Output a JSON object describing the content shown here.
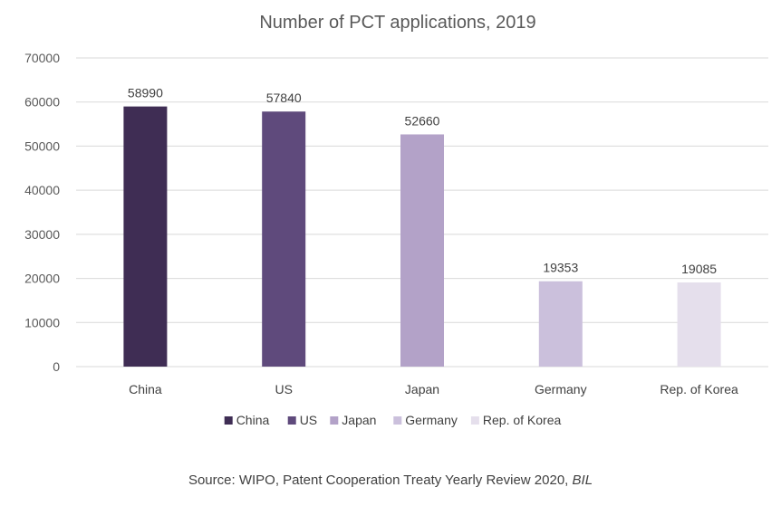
{
  "chart_data": {
    "type": "bar",
    "title": "Number of PCT applications, 2019",
    "categories": [
      "China",
      "US",
      "Japan",
      "Germany",
      "Rep. of Korea"
    ],
    "values": [
      58990,
      57840,
      52660,
      19353,
      19085
    ],
    "data_labels": [
      "58990",
      "57840",
      "52660",
      "19353",
      "19085"
    ],
    "colors": [
      "#3f2d54",
      "#5f4a7c",
      "#b3a2c8",
      "#cbc0dc",
      "#e5dfec"
    ],
    "legend": [
      "China",
      "US",
      "Japan",
      "Germany",
      "Rep. of Korea"
    ],
    "legend_position": "bottom",
    "ylim": [
      0,
      70000
    ],
    "yticks": [
      "0",
      "10000",
      "20000",
      "30000",
      "40000",
      "50000",
      "60000",
      "70000"
    ],
    "ytick_values": [
      0,
      10000,
      20000,
      30000,
      40000,
      50000,
      60000,
      70000
    ],
    "grid": true,
    "gridline_color": "#d9d9d9"
  },
  "source": {
    "text": "Source: WIPO, Patent Cooperation Treaty Yearly Review 2020, ",
    "italic": "BIL"
  }
}
